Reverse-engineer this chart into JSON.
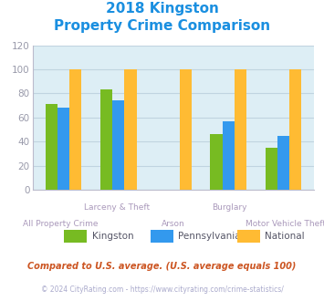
{
  "title_line1": "2018 Kingston",
  "title_line2": "Property Crime Comparison",
  "title_color": "#1a8fe0",
  "categories": [
    "All Property Crime",
    "Larceny & Theft",
    "Arson",
    "Burglary",
    "Motor Vehicle Theft"
  ],
  "kingston": [
    71,
    83,
    0,
    46,
    35
  ],
  "pennsylvania": [
    68,
    74,
    0,
    57,
    45
  ],
  "national": [
    100,
    100,
    100,
    100,
    100
  ],
  "color_kingston": "#77bb22",
  "color_pennsylvania": "#3399ee",
  "color_national": "#ffbb33",
  "bg_color": "#ddeef5",
  "ylim": [
    0,
    120
  ],
  "yticks": [
    0,
    20,
    40,
    60,
    80,
    100,
    120
  ],
  "footnote": "Compared to U.S. average. (U.S. average equals 100)",
  "footnote2": "© 2024 CityRating.com - https://www.cityrating.com/crime-statistics/",
  "footnote_color": "#cc5522",
  "footnote2_color": "#aaaacc",
  "bar_width": 0.22,
  "grid_color": "#c0d4e0",
  "tick_color": "#999aaa",
  "label_color": "#aa99bb"
}
